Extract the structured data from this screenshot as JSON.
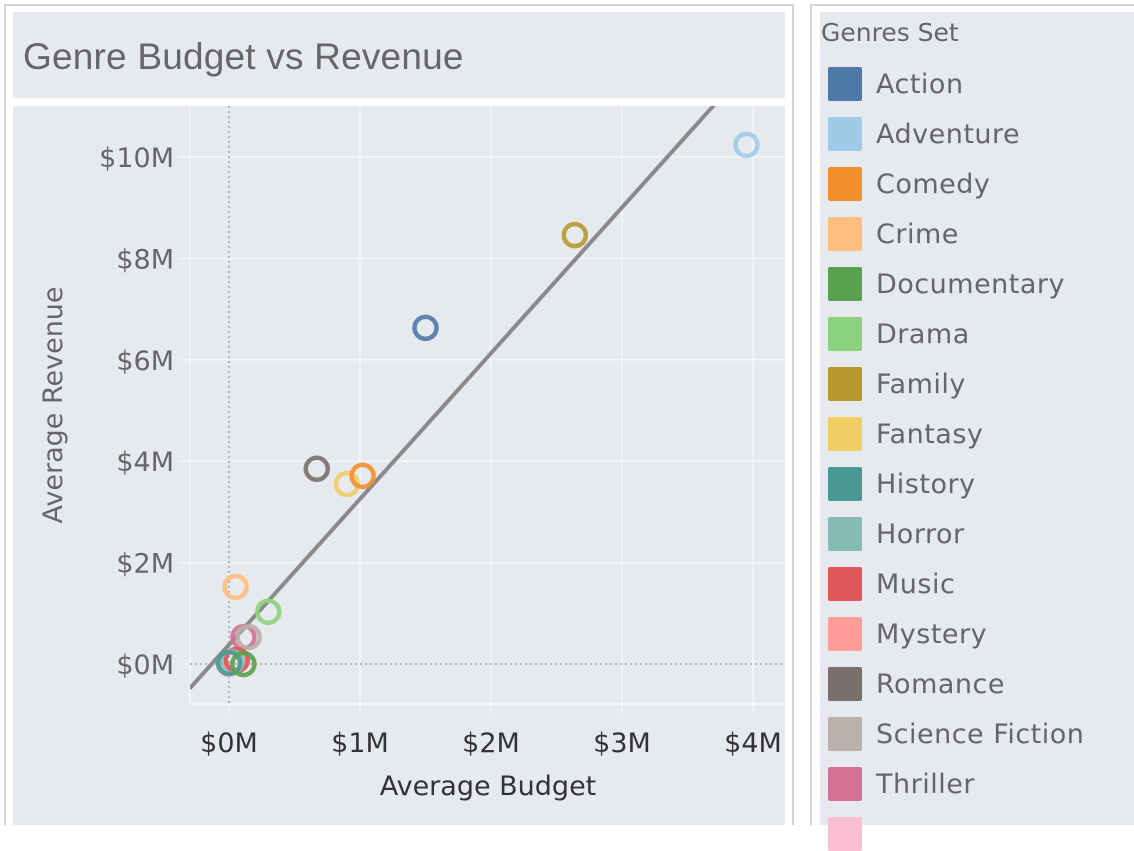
{
  "chart_data": {
    "type": "scatter",
    "title": "Genre Budget vs Revenue",
    "xlabel": "Average Budget",
    "ylabel": "Average Revenue",
    "xlim": [
      -0.3,
      4.2
    ],
    "ylim": [
      -0.75,
      10.9
    ],
    "x_ticks": [
      0,
      1,
      2,
      3,
      4
    ],
    "x_tick_labels": [
      "$0M",
      "$1M",
      "$2M",
      "$3M",
      "$4M"
    ],
    "y_ticks": [
      0,
      2,
      4,
      6,
      8,
      10
    ],
    "y_tick_labels": [
      "$0M",
      "$2M",
      "$4M",
      "$6M",
      "$8M",
      "$10M"
    ],
    "units": "millions USD",
    "grid": true,
    "marker": "hollow-circle",
    "trend_line": {
      "slope": 2.875,
      "intercept": 0.38,
      "color": "#8a8a8a"
    },
    "legend_title": "Genres Set",
    "legend_position": "right",
    "points": [
      {
        "genre": "Action",
        "budget": 1.5,
        "revenue": 6.63,
        "color": "#4e79a7"
      },
      {
        "genre": "Adventure",
        "budget": 3.95,
        "revenue": 10.24,
        "color": "#a0cbe8"
      },
      {
        "genre": "Comedy",
        "budget": 1.02,
        "revenue": 3.71,
        "color": "#f28e2b"
      },
      {
        "genre": "Crime",
        "budget": 0.05,
        "revenue": 1.52,
        "color": "#ffbe7d"
      },
      {
        "genre": "Documentary",
        "budget": 0.11,
        "revenue": 0.0,
        "color": "#59a14f"
      },
      {
        "genre": "Drama",
        "budget": 0.3,
        "revenue": 1.03,
        "color": "#8cd17d"
      },
      {
        "genre": "Family",
        "budget": 2.64,
        "revenue": 8.46,
        "color": "#b6992d"
      },
      {
        "genre": "Fantasy",
        "budget": 0.9,
        "revenue": 3.55,
        "color": "#f1ce63"
      },
      {
        "genre": "History",
        "budget": 0.0,
        "revenue": 0.02,
        "color": "#499894"
      },
      {
        "genre": "Horror",
        "budget": 0.02,
        "revenue": 0.04,
        "color": "#86bcb6"
      },
      {
        "genre": "Music",
        "budget": 0.06,
        "revenue": 0.08,
        "color": "#e15759"
      },
      {
        "genre": "Mystery",
        "budget": 0.05,
        "revenue": 0.08,
        "color": "#ff9d9a"
      },
      {
        "genre": "Romance",
        "budget": 0.67,
        "revenue": 3.85,
        "color": "#79706e"
      },
      {
        "genre": "Science Fiction",
        "budget": 0.15,
        "revenue": 0.53,
        "color": "#bab0ac"
      },
      {
        "genre": "Thriller",
        "budget": 0.11,
        "revenue": 0.53,
        "color": "#d37295"
      },
      {
        "genre": "",
        "budget": 0.0,
        "revenue": 0.0,
        "color": "#fabfd2"
      }
    ],
    "legend": [
      {
        "label": "Action",
        "color": "#4e79a7"
      },
      {
        "label": "Adventure",
        "color": "#a0cbe8"
      },
      {
        "label": "Comedy",
        "color": "#f28e2b"
      },
      {
        "label": "Crime",
        "color": "#ffbe7d"
      },
      {
        "label": "Documentary",
        "color": "#59a14f"
      },
      {
        "label": "Drama",
        "color": "#8cd17d"
      },
      {
        "label": "Family",
        "color": "#b6992d"
      },
      {
        "label": "Fantasy",
        "color": "#f1ce63"
      },
      {
        "label": "History",
        "color": "#499894"
      },
      {
        "label": "Horror",
        "color": "#86bcb6"
      },
      {
        "label": "Music",
        "color": "#e15759"
      },
      {
        "label": "Mystery",
        "color": "#ff9d9a"
      },
      {
        "label": "Romance",
        "color": "#79706e"
      },
      {
        "label": "Science Fiction",
        "color": "#bab0ac"
      },
      {
        "label": "Thriller",
        "color": "#d37295"
      },
      {
        "label": "",
        "color": "#fabfd2"
      }
    ]
  }
}
